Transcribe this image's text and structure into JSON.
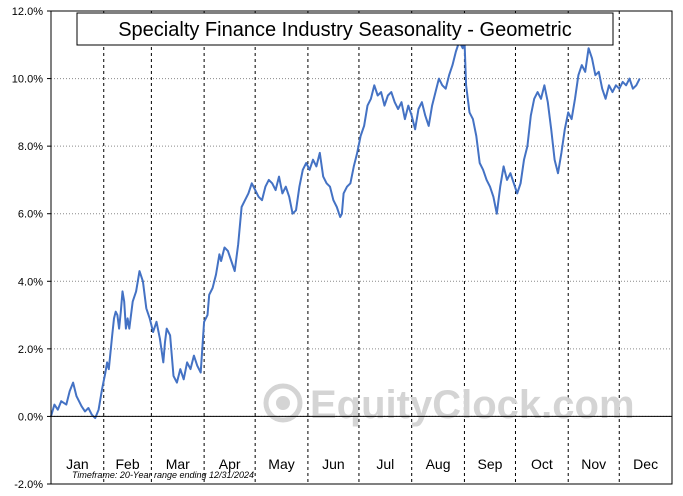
{
  "chart_data": {
    "type": "line",
    "title": "Specialty Finance Industry Seasonality - Geometric",
    "xlabel": "",
    "ylabel": "",
    "months": [
      "Jan",
      "Feb",
      "Mar",
      "Apr",
      "May",
      "Jun",
      "Jul",
      "Aug",
      "Sep",
      "Oct",
      "Nov",
      "Dec"
    ],
    "yticks": [
      "-2.0%",
      "0.0%",
      "2.0%",
      "4.0%",
      "6.0%",
      "8.0%",
      "10.0%",
      "12.0%"
    ],
    "ylim": [
      -2,
      12
    ],
    "xlim": [
      0,
      365
    ],
    "grid": "dashed vertical month dividers, dotted horizontal gridlines",
    "line_color": "#4472c4",
    "footnote": "Timeframe: 20-Year range ending 12/31/2024",
    "watermark": "EquityClock.com",
    "series": [
      {
        "values": [
          [
            0,
            0.0
          ],
          [
            2,
            0.35
          ],
          [
            4,
            0.2
          ],
          [
            6,
            0.45
          ],
          [
            9,
            0.35
          ],
          [
            11,
            0.75
          ],
          [
            13,
            1.0
          ],
          [
            15,
            0.6
          ],
          [
            18,
            0.3
          ],
          [
            20,
            0.15
          ],
          [
            22,
            0.25
          ],
          [
            24,
            0.05
          ],
          [
            26,
            -0.05
          ],
          [
            28,
            0.2
          ],
          [
            30,
            0.8
          ],
          [
            32,
            1.3
          ],
          [
            33,
            1.6
          ],
          [
            34,
            1.4
          ],
          [
            36,
            2.4
          ],
          [
            37,
            2.9
          ],
          [
            38,
            3.1
          ],
          [
            39,
            3.0
          ],
          [
            40,
            2.6
          ],
          [
            41,
            3.1
          ],
          [
            42,
            3.7
          ],
          [
            43,
            3.4
          ],
          [
            44,
            2.6
          ],
          [
            45,
            2.9
          ],
          [
            46,
            2.6
          ],
          [
            48,
            3.4
          ],
          [
            50,
            3.7
          ],
          [
            52,
            4.3
          ],
          [
            54,
            4.0
          ],
          [
            56,
            3.2
          ],
          [
            58,
            2.9
          ],
          [
            60,
            2.5
          ],
          [
            62,
            2.8
          ],
          [
            64,
            2.3
          ],
          [
            66,
            1.6
          ],
          [
            67,
            2.2
          ],
          [
            68,
            2.6
          ],
          [
            70,
            2.4
          ],
          [
            71,
            1.8
          ],
          [
            72,
            1.2
          ],
          [
            74,
            1.0
          ],
          [
            76,
            1.4
          ],
          [
            78,
            1.1
          ],
          [
            80,
            1.6
          ],
          [
            82,
            1.4
          ],
          [
            84,
            1.8
          ],
          [
            86,
            1.5
          ],
          [
            88,
            1.3
          ],
          [
            90,
            2.8
          ],
          [
            92,
            3.0
          ],
          [
            93,
            3.6
          ],
          [
            95,
            3.8
          ],
          [
            97,
            4.2
          ],
          [
            99,
            4.8
          ],
          [
            100,
            4.6
          ],
          [
            102,
            5.0
          ],
          [
            104,
            4.9
          ],
          [
            106,
            4.6
          ],
          [
            108,
            4.3
          ],
          [
            110,
            5.1
          ],
          [
            112,
            6.2
          ],
          [
            114,
            6.4
          ],
          [
            116,
            6.6
          ],
          [
            118,
            6.9
          ],
          [
            120,
            6.7
          ],
          [
            122,
            6.5
          ],
          [
            124,
            6.4
          ],
          [
            126,
            6.8
          ],
          [
            128,
            7.0
          ],
          [
            130,
            6.9
          ],
          [
            132,
            6.7
          ],
          [
            134,
            7.1
          ],
          [
            136,
            6.6
          ],
          [
            138,
            6.8
          ],
          [
            140,
            6.5
          ],
          [
            142,
            6.0
          ],
          [
            144,
            6.1
          ],
          [
            146,
            6.8
          ],
          [
            148,
            7.3
          ],
          [
            150,
            7.5
          ],
          [
            152,
            7.3
          ],
          [
            154,
            7.6
          ],
          [
            156,
            7.4
          ],
          [
            158,
            7.8
          ],
          [
            160,
            7.1
          ],
          [
            162,
            6.9
          ],
          [
            164,
            6.8
          ],
          [
            166,
            6.4
          ],
          [
            168,
            6.2
          ],
          [
            170,
            5.9
          ],
          [
            171,
            6.0
          ],
          [
            172,
            6.6
          ],
          [
            174,
            6.8
          ],
          [
            176,
            6.9
          ],
          [
            178,
            7.4
          ],
          [
            180,
            7.8
          ],
          [
            182,
            8.3
          ],
          [
            184,
            8.6
          ],
          [
            186,
            9.2
          ],
          [
            188,
            9.4
          ],
          [
            190,
            9.8
          ],
          [
            192,
            9.5
          ],
          [
            194,
            9.6
          ],
          [
            196,
            9.2
          ],
          [
            198,
            9.5
          ],
          [
            200,
            9.6
          ],
          [
            202,
            9.3
          ],
          [
            204,
            9.1
          ],
          [
            206,
            9.3
          ],
          [
            208,
            8.8
          ],
          [
            210,
            9.2
          ],
          [
            212,
            8.9
          ],
          [
            214,
            8.5
          ],
          [
            216,
            9.1
          ],
          [
            218,
            9.3
          ],
          [
            220,
            8.9
          ],
          [
            222,
            8.6
          ],
          [
            224,
            9.2
          ],
          [
            226,
            9.6
          ],
          [
            228,
            10.0
          ],
          [
            230,
            9.8
          ],
          [
            232,
            9.7
          ],
          [
            234,
            10.1
          ],
          [
            236,
            10.4
          ],
          [
            238,
            10.8
          ],
          [
            240,
            11.1
          ],
          [
            242,
            10.9
          ],
          [
            243,
            11.2
          ],
          [
            244,
            9.8
          ],
          [
            246,
            9.0
          ],
          [
            248,
            8.8
          ],
          [
            250,
            8.3
          ],
          [
            252,
            7.5
          ],
          [
            254,
            7.3
          ],
          [
            256,
            7.0
          ],
          [
            258,
            6.8
          ],
          [
            260,
            6.5
          ],
          [
            262,
            6.0
          ],
          [
            264,
            6.8
          ],
          [
            266,
            7.4
          ],
          [
            268,
            7.0
          ],
          [
            270,
            7.2
          ],
          [
            272,
            6.9
          ],
          [
            274,
            6.6
          ],
          [
            276,
            6.9
          ],
          [
            278,
            7.6
          ],
          [
            280,
            8.0
          ],
          [
            282,
            8.9
          ],
          [
            284,
            9.4
          ],
          [
            286,
            9.6
          ],
          [
            288,
            9.4
          ],
          [
            290,
            9.8
          ],
          [
            292,
            9.3
          ],
          [
            294,
            8.5
          ],
          [
            296,
            7.6
          ],
          [
            298,
            7.2
          ],
          [
            300,
            7.8
          ],
          [
            302,
            8.5
          ],
          [
            304,
            9.0
          ],
          [
            306,
            8.8
          ],
          [
            308,
            9.4
          ],
          [
            310,
            10.1
          ],
          [
            312,
            10.4
          ],
          [
            314,
            10.2
          ],
          [
            316,
            10.9
          ],
          [
            318,
            10.6
          ],
          [
            320,
            10.1
          ],
          [
            322,
            10.2
          ],
          [
            324,
            9.7
          ],
          [
            326,
            9.4
          ],
          [
            328,
            9.8
          ],
          [
            330,
            9.6
          ],
          [
            332,
            9.8
          ],
          [
            334,
            9.7
          ],
          [
            336,
            9.9
          ],
          [
            338,
            9.8
          ],
          [
            340,
            10.0
          ],
          [
            342,
            9.7
          ],
          [
            344,
            9.8
          ],
          [
            346,
            10.0
          ]
        ]
      }
    ]
  }
}
